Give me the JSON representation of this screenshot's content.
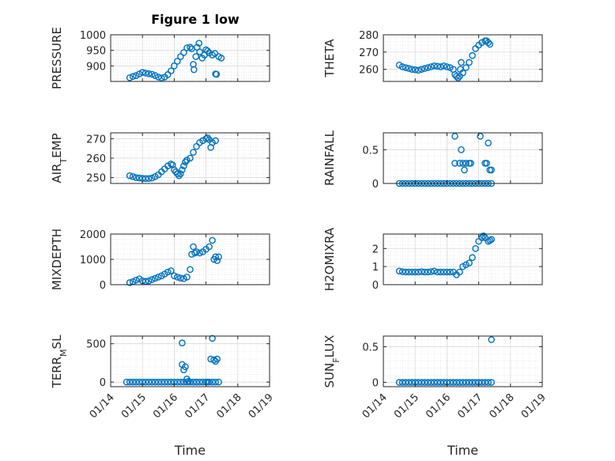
{
  "figure": {
    "title": "Figure 1 low"
  },
  "style": {
    "marker_color": "#0072BD",
    "axis_color": "#262626",
    "grid_color": "#d9d9d9",
    "background": "#ffffff"
  },
  "chart_data": [
    {
      "type": "scatter",
      "ylabel": "PRESSURE",
      "title": "Figure 1 low",
      "xlabel": "",
      "ylim": [
        850,
        1000
      ],
      "yticks": [
        900,
        950,
        1000
      ],
      "xlim": [
        14,
        19
      ],
      "xticks": [
        "01/14",
        "01/15",
        "01/16",
        "01/17",
        "01/18",
        "01/19"
      ],
      "grid": true,
      "minor_grid": true,
      "points": [
        [
          14.6,
          862
        ],
        [
          14.7,
          866
        ],
        [
          14.8,
          869
        ],
        [
          14.9,
          874
        ],
        [
          15.0,
          879
        ],
        [
          15.1,
          877
        ],
        [
          15.2,
          875
        ],
        [
          15.3,
          873
        ],
        [
          15.4,
          869
        ],
        [
          15.5,
          864
        ],
        [
          15.6,
          861
        ],
        [
          15.7,
          864
        ],
        [
          15.8,
          872
        ],
        [
          15.9,
          884
        ],
        [
          16.0,
          900
        ],
        [
          16.1,
          915
        ],
        [
          16.2,
          930
        ],
        [
          16.3,
          943
        ],
        [
          16.4,
          958
        ],
        [
          16.5,
          960
        ],
        [
          16.55,
          955
        ],
        [
          16.6,
          905
        ],
        [
          16.62,
          888
        ],
        [
          16.68,
          930
        ],
        [
          16.72,
          960
        ],
        [
          16.78,
          973
        ],
        [
          16.8,
          945
        ],
        [
          16.88,
          925
        ],
        [
          16.95,
          935
        ],
        [
          17.0,
          952
        ],
        [
          17.05,
          948
        ],
        [
          17.1,
          942
        ],
        [
          17.2,
          935
        ],
        [
          17.28,
          940
        ],
        [
          17.3,
          874
        ],
        [
          17.33,
          873
        ],
        [
          17.4,
          930
        ],
        [
          17.48,
          925
        ]
      ]
    },
    {
      "type": "scatter",
      "ylabel": "THETA",
      "xlabel": "",
      "ylim": [
        253,
        280
      ],
      "yticks": [
        260,
        270,
        280
      ],
      "xlim": [
        14,
        19
      ],
      "xticks": [
        "01/14",
        "01/15",
        "01/16",
        "01/17",
        "01/18",
        "01/19"
      ],
      "grid": true,
      "minor_grid": true,
      "points": [
        [
          14.5,
          262.5
        ],
        [
          14.6,
          261.5
        ],
        [
          14.7,
          261
        ],
        [
          14.8,
          260.5
        ],
        [
          14.9,
          260
        ],
        [
          15.0,
          259.8
        ],
        [
          15.1,
          259.5
        ],
        [
          15.2,
          260
        ],
        [
          15.3,
          260.5
        ],
        [
          15.4,
          261
        ],
        [
          15.5,
          261.5
        ],
        [
          15.6,
          262
        ],
        [
          15.7,
          261.8
        ],
        [
          15.8,
          261.5
        ],
        [
          15.9,
          262
        ],
        [
          16.0,
          261.5
        ],
        [
          16.1,
          261
        ],
        [
          16.2,
          260
        ],
        [
          16.25,
          257
        ],
        [
          16.3,
          256
        ],
        [
          16.35,
          255
        ],
        [
          16.4,
          256
        ],
        [
          16.42,
          260
        ],
        [
          16.45,
          264
        ],
        [
          16.5,
          258
        ],
        [
          16.6,
          261
        ],
        [
          16.7,
          264
        ],
        [
          16.8,
          268
        ],
        [
          16.9,
          272
        ],
        [
          17.0,
          274
        ],
        [
          17.1,
          275.5
        ],
        [
          17.2,
          276.5
        ],
        [
          17.25,
          276.5
        ],
        [
          17.3,
          275.5
        ],
        [
          17.35,
          274.5
        ]
      ]
    },
    {
      "type": "scatter",
      "ylabel": "AIR_TEMP",
      "xlabel": "",
      "ylim": [
        247,
        273
      ],
      "yticks": [
        250,
        260,
        270
      ],
      "xlim": [
        14,
        19
      ],
      "xticks": [
        "01/14",
        "01/15",
        "01/16",
        "01/17",
        "01/18",
        "01/19"
      ],
      "grid": true,
      "minor_grid": true,
      "points": [
        [
          14.6,
          251
        ],
        [
          14.7,
          250.5
        ],
        [
          14.8,
          250
        ],
        [
          14.9,
          249.8
        ],
        [
          15.0,
          249.6
        ],
        [
          15.1,
          249.5
        ],
        [
          15.2,
          249.5
        ],
        [
          15.3,
          249.8
        ],
        [
          15.4,
          250.5
        ],
        [
          15.5,
          251.5
        ],
        [
          15.6,
          253
        ],
        [
          15.7,
          254.5
        ],
        [
          15.8,
          256
        ],
        [
          15.9,
          257
        ],
        [
          15.95,
          256.5
        ],
        [
          16.0,
          254
        ],
        [
          16.05,
          253
        ],
        [
          16.1,
          252
        ],
        [
          16.15,
          251
        ],
        [
          16.2,
          252
        ],
        [
          16.25,
          254
        ],
        [
          16.3,
          256
        ],
        [
          16.35,
          258
        ],
        [
          16.4,
          259
        ],
        [
          16.5,
          260
        ],
        [
          16.6,
          263
        ],
        [
          16.7,
          266
        ],
        [
          16.8,
          268
        ],
        [
          16.9,
          269
        ],
        [
          17.0,
          270
        ],
        [
          17.05,
          270.5
        ],
        [
          17.1,
          269.5
        ],
        [
          17.15,
          265.5
        ],
        [
          17.2,
          268
        ],
        [
          17.3,
          269
        ]
      ]
    },
    {
      "type": "scatter",
      "ylabel": "RAINFALL",
      "xlabel": "",
      "ylim": [
        0,
        0.75
      ],
      "yticks": [
        0,
        0.5
      ],
      "xlim": [
        14,
        19
      ],
      "xticks": [
        "01/14",
        "01/15",
        "01/16",
        "01/17",
        "01/18",
        "01/19"
      ],
      "grid": true,
      "minor_grid": true,
      "points": [
        [
          14.5,
          0
        ],
        [
          14.6,
          0
        ],
        [
          14.7,
          0
        ],
        [
          14.8,
          0
        ],
        [
          14.9,
          0
        ],
        [
          15.0,
          0
        ],
        [
          15.1,
          0
        ],
        [
          15.2,
          0
        ],
        [
          15.3,
          0
        ],
        [
          15.4,
          0
        ],
        [
          15.5,
          0
        ],
        [
          15.6,
          0
        ],
        [
          15.7,
          0
        ],
        [
          15.8,
          0
        ],
        [
          15.9,
          0
        ],
        [
          16.0,
          0
        ],
        [
          16.1,
          0
        ],
        [
          16.2,
          0
        ],
        [
          16.3,
          0
        ],
        [
          16.4,
          0
        ],
        [
          16.5,
          0
        ],
        [
          16.6,
          0
        ],
        [
          16.7,
          0
        ],
        [
          16.8,
          0
        ],
        [
          16.9,
          0
        ],
        [
          17.0,
          0
        ],
        [
          17.1,
          0
        ],
        [
          17.2,
          0
        ],
        [
          17.3,
          0
        ],
        [
          17.4,
          0
        ],
        [
          16.25,
          0.7
        ],
        [
          16.25,
          0.3
        ],
        [
          16.4,
          0.3
        ],
        [
          16.45,
          0.5
        ],
        [
          16.5,
          0.3
        ],
        [
          16.55,
          0.2
        ],
        [
          16.6,
          0.3
        ],
        [
          16.7,
          0.3
        ],
        [
          16.75,
          0.3
        ],
        [
          17.05,
          0.7
        ],
        [
          17.2,
          0.3
        ],
        [
          17.25,
          0.3
        ],
        [
          17.3,
          0.6
        ],
        [
          17.35,
          0.2
        ],
        [
          17.4,
          0.2
        ]
      ]
    },
    {
      "type": "scatter",
      "ylabel": "MIXDEPTH",
      "xlabel": "",
      "ylim": [
        0,
        2000
      ],
      "yticks": [
        0,
        1000,
        2000
      ],
      "xlim": [
        14,
        19
      ],
      "xticks": [
        "01/14",
        "01/15",
        "01/16",
        "01/17",
        "01/18",
        "01/19"
      ],
      "grid": true,
      "minor_grid": true,
      "points": [
        [
          14.6,
          80
        ],
        [
          14.7,
          120
        ],
        [
          14.8,
          180
        ],
        [
          14.9,
          230
        ],
        [
          15.0,
          150
        ],
        [
          15.1,
          130
        ],
        [
          15.2,
          150
        ],
        [
          15.3,
          200
        ],
        [
          15.4,
          250
        ],
        [
          15.5,
          300
        ],
        [
          15.6,
          350
        ],
        [
          15.7,
          420
        ],
        [
          15.8,
          500
        ],
        [
          15.9,
          550
        ],
        [
          16.0,
          350
        ],
        [
          16.1,
          300
        ],
        [
          16.2,
          260
        ],
        [
          16.3,
          240
        ],
        [
          16.4,
          300
        ],
        [
          16.5,
          600
        ],
        [
          16.55,
          1200
        ],
        [
          16.6,
          1500
        ],
        [
          16.65,
          1250
        ],
        [
          16.7,
          1300
        ],
        [
          16.8,
          1250
        ],
        [
          16.9,
          1300
        ],
        [
          17.0,
          1400
        ],
        [
          17.1,
          1500
        ],
        [
          17.2,
          1750
        ],
        [
          17.25,
          1000
        ],
        [
          17.3,
          1100
        ],
        [
          17.35,
          950
        ],
        [
          17.4,
          1100
        ]
      ]
    },
    {
      "type": "scatter",
      "ylabel": "H2OMIXRA",
      "xlabel": "",
      "ylim": [
        0,
        2.8
      ],
      "yticks": [
        0,
        1,
        2
      ],
      "xlim": [
        14,
        19
      ],
      "xticks": [
        "01/14",
        "01/15",
        "01/16",
        "01/17",
        "01/18",
        "01/19"
      ],
      "grid": true,
      "minor_grid": true,
      "points": [
        [
          14.5,
          0.75
        ],
        [
          14.6,
          0.72
        ],
        [
          14.7,
          0.7
        ],
        [
          14.8,
          0.7
        ],
        [
          14.9,
          0.7
        ],
        [
          15.0,
          0.7
        ],
        [
          15.1,
          0.7
        ],
        [
          15.2,
          0.72
        ],
        [
          15.3,
          0.7
        ],
        [
          15.4,
          0.7
        ],
        [
          15.5,
          0.72
        ],
        [
          15.6,
          0.75
        ],
        [
          15.7,
          0.7
        ],
        [
          15.8,
          0.7
        ],
        [
          15.9,
          0.7
        ],
        [
          16.0,
          0.7
        ],
        [
          16.1,
          0.7
        ],
        [
          16.2,
          0.7
        ],
        [
          16.3,
          0.55
        ],
        [
          16.4,
          0.7
        ],
        [
          16.5,
          1.0
        ],
        [
          16.6,
          1.1
        ],
        [
          16.7,
          1.2
        ],
        [
          16.8,
          1.5
        ],
        [
          16.9,
          2.0
        ],
        [
          17.0,
          2.4
        ],
        [
          17.1,
          2.6
        ],
        [
          17.15,
          2.7
        ],
        [
          17.2,
          2.6
        ],
        [
          17.3,
          2.4
        ],
        [
          17.35,
          2.45
        ],
        [
          17.4,
          2.5
        ]
      ]
    },
    {
      "type": "scatter",
      "ylabel": "TERR_MSL",
      "xlabel": "Time",
      "ylim": [
        -60,
        600
      ],
      "yticks": [
        0,
        500
      ],
      "xlim": [
        14,
        19
      ],
      "xticks": [
        "01/14",
        "01/15",
        "01/16",
        "01/17",
        "01/18",
        "01/19"
      ],
      "grid": true,
      "minor_grid": true,
      "points": [
        [
          14.5,
          0
        ],
        [
          14.6,
          0
        ],
        [
          14.7,
          0
        ],
        [
          14.8,
          0
        ],
        [
          14.9,
          0
        ],
        [
          15.0,
          0
        ],
        [
          15.1,
          0
        ],
        [
          15.2,
          0
        ],
        [
          15.3,
          0
        ],
        [
          15.4,
          0
        ],
        [
          15.5,
          0
        ],
        [
          15.6,
          0
        ],
        [
          15.7,
          0
        ],
        [
          15.8,
          0
        ],
        [
          15.9,
          0
        ],
        [
          16.0,
          0
        ],
        [
          16.1,
          0
        ],
        [
          16.2,
          0
        ],
        [
          16.3,
          0
        ],
        [
          16.4,
          0
        ],
        [
          16.5,
          0
        ],
        [
          16.6,
          0
        ],
        [
          16.7,
          0
        ],
        [
          16.8,
          0
        ],
        [
          16.9,
          0
        ],
        [
          17.0,
          0
        ],
        [
          17.1,
          0
        ],
        [
          17.2,
          0
        ],
        [
          17.3,
          0
        ],
        [
          17.4,
          0
        ],
        [
          16.7,
          0
        ],
        [
          17.05,
          0
        ],
        [
          16.25,
          510
        ],
        [
          16.25,
          230
        ],
        [
          16.3,
          160
        ],
        [
          16.35,
          200
        ],
        [
          16.4,
          40
        ],
        [
          16.45,
          10
        ],
        [
          17.15,
          300
        ],
        [
          17.2,
          570
        ],
        [
          17.25,
          290
        ],
        [
          17.3,
          270
        ],
        [
          17.35,
          300
        ]
      ]
    },
    {
      "type": "scatter",
      "ylabel": "SUN_FLUX",
      "xlabel": "Time",
      "ylim": [
        -0.06,
        0.65
      ],
      "yticks": [
        0,
        0.5
      ],
      "xlim": [
        14,
        19
      ],
      "xticks": [
        "01/14",
        "01/15",
        "01/16",
        "01/17",
        "01/18",
        "01/19"
      ],
      "grid": true,
      "minor_grid": true,
      "points": [
        [
          14.5,
          0
        ],
        [
          14.6,
          0
        ],
        [
          14.7,
          0
        ],
        [
          14.8,
          0
        ],
        [
          14.9,
          0
        ],
        [
          15.0,
          0
        ],
        [
          15.1,
          0
        ],
        [
          15.2,
          0
        ],
        [
          15.3,
          0
        ],
        [
          15.4,
          0
        ],
        [
          15.5,
          0
        ],
        [
          15.6,
          0
        ],
        [
          15.7,
          0
        ],
        [
          15.8,
          0
        ],
        [
          15.9,
          0
        ],
        [
          16.0,
          0
        ],
        [
          16.1,
          0
        ],
        [
          16.2,
          0
        ],
        [
          16.3,
          0
        ],
        [
          16.4,
          0
        ],
        [
          16.5,
          0
        ],
        [
          16.6,
          0
        ],
        [
          16.7,
          0
        ],
        [
          16.8,
          0
        ],
        [
          16.9,
          0
        ],
        [
          17.0,
          0
        ],
        [
          17.1,
          0
        ],
        [
          17.2,
          0
        ],
        [
          17.3,
          0
        ],
        [
          17.4,
          0
        ],
        [
          17.4,
          0.6
        ]
      ]
    }
  ]
}
